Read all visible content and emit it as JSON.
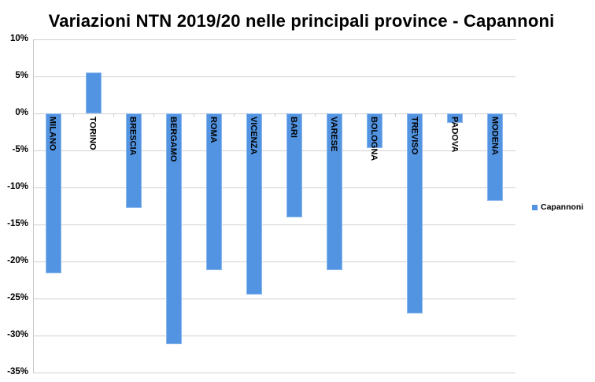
{
  "chart_data": {
    "type": "bar",
    "title": "Variazioni NTN 2019/20 nelle principali province -  Capannoni",
    "xlabel": "",
    "ylabel": "",
    "ylim": [
      -35,
      10
    ],
    "yticks": [
      "10%",
      "5%",
      "0%",
      "-5%",
      "-10%",
      "-15%",
      "-20%",
      "-25%",
      "-30%",
      "-35%"
    ],
    "grid": true,
    "legend_position": "right",
    "categories": [
      "MILANO",
      "TORINO",
      "BRESCIA",
      "BERGAMO",
      "ROMA",
      "VICENZA",
      "BARI",
      "VARESE",
      "BOLOGNA",
      "TREVISO",
      "PADOVA",
      "MODENA"
    ],
    "series": [
      {
        "name": "Capannoni",
        "color": "#5294e2",
        "values": [
          -21.6,
          5.5,
          -12.8,
          -31.2,
          -21.2,
          -24.5,
          -14.0,
          -21.2,
          -4.7,
          -27.0,
          -1.3,
          -11.8
        ]
      }
    ]
  }
}
